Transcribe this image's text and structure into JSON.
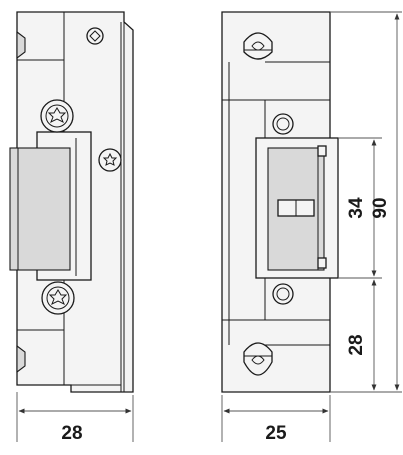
{
  "dimensions": {
    "front_width": "28",
    "side_width": "25",
    "latch_height": "34",
    "total_height": "90",
    "lower_offset": "28"
  },
  "colors": {
    "line": "#1a1a1a",
    "dimension": "#555555",
    "fill_light": "#f4f4f4",
    "fill_grey": "#d9d9d9"
  }
}
